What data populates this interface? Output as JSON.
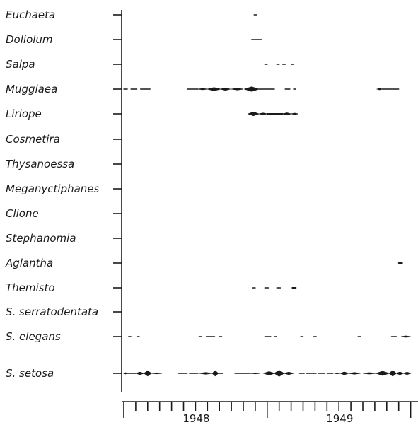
{
  "chart_data": {
    "type": "kite diagram",
    "x_axis": {
      "start_month": "1948-01",
      "end_month": "1949-12",
      "year_labels": [
        {
          "text": "1948",
          "month_index": 6.0
        },
        {
          "text": "1949",
          "month_index": 18.0
        }
      ],
      "tick_month_indices": [
        0,
        1,
        2,
        3,
        4,
        5,
        6,
        7,
        8,
        9,
        10,
        11,
        12,
        13,
        14,
        15,
        16,
        17,
        18,
        19,
        20,
        21,
        22,
        23,
        24
      ]
    },
    "rows": [
      {
        "name": "Euchaeta",
        "italic": true,
        "segments": [
          [
            10.9,
            11.1,
            0.8
          ]
        ]
      },
      {
        "name": "Doliolum",
        "italic": true,
        "segments": [
          [
            10.7,
            11.5,
            0.6
          ]
        ]
      },
      {
        "name": "Salpa",
        "italic": true,
        "segments": [
          [
            11.8,
            12.0,
            1.0
          ],
          [
            12.8,
            13.0,
            1.0
          ],
          [
            13.3,
            13.5,
            1.0
          ],
          [
            14.0,
            14.2,
            1.0
          ]
        ]
      },
      {
        "name": "Muggiaea",
        "italic": true,
        "segments": [
          [
            0.0,
            0.3,
            0.6
          ],
          [
            0.6,
            1.1,
            0.6
          ],
          [
            1.4,
            2.2,
            0.6
          ],
          [
            5.3,
            6.2,
            0.8
          ],
          [
            6.2,
            7.0,
            1.8
          ],
          [
            7.0,
            8.1,
            4.5
          ],
          [
            8.1,
            8.9,
            3.5
          ],
          [
            9.0,
            10.0,
            2.5
          ],
          [
            10.1,
            11.3,
            6.5
          ],
          [
            11.3,
            12.6,
            1.0
          ],
          [
            13.5,
            13.9,
            0.6
          ],
          [
            14.2,
            14.4,
            0.6
          ],
          [
            21.2,
            21.6,
            1.8
          ],
          [
            21.6,
            23.0,
            0.7
          ]
        ]
      },
      {
        "name": "Liriope",
        "italic": true,
        "segments": [
          [
            10.4,
            11.3,
            5.5
          ],
          [
            11.3,
            12.0,
            2.5
          ],
          [
            12.0,
            13.3,
            1.2
          ],
          [
            13.3,
            14.0,
            3.0
          ],
          [
            14.0,
            14.6,
            2.0
          ]
        ]
      },
      {
        "name": "Cosmetira",
        "italic": true,
        "segments": []
      },
      {
        "name": "Thysanoessa",
        "italic": true,
        "segments": []
      },
      {
        "name": "Meganyctiphanes",
        "italic": true,
        "segments": []
      },
      {
        "name": "Clione",
        "italic": true,
        "segments": []
      },
      {
        "name": "Stephanomia",
        "italic": true,
        "segments": []
      },
      {
        "name": "Aglantha",
        "italic": true,
        "segments": [
          [
            23.0,
            23.3,
            1.2
          ]
        ]
      },
      {
        "name": "Themisto",
        "italic": true,
        "segments": [
          [
            10.8,
            11.0,
            1.0
          ],
          [
            11.8,
            12.1,
            1.0
          ],
          [
            12.8,
            13.1,
            1.0
          ],
          [
            14.1,
            14.4,
            1.2
          ]
        ]
      },
      {
        "name": "S. serratodentata",
        "italic": true,
        "segments": []
      },
      {
        "name": "S. elegans",
        "italic": true,
        "segments": [
          [
            0.4,
            0.6,
            0.8
          ],
          [
            1.1,
            1.3,
            0.8
          ],
          [
            6.3,
            6.5,
            0.8
          ],
          [
            6.9,
            7.6,
            1.0
          ],
          [
            8.0,
            8.2,
            0.8
          ],
          [
            11.8,
            12.3,
            0.8
          ],
          [
            12.6,
            12.8,
            0.8
          ],
          [
            14.8,
            15.0,
            0.8
          ],
          [
            15.9,
            16.1,
            0.8
          ],
          [
            19.6,
            19.8,
            0.8
          ],
          [
            22.4,
            22.8,
            1.0
          ],
          [
            23.2,
            24.0,
            2.0
          ]
        ]
      },
      {
        "name": "S. setosa",
        "italic": true,
        "segments": [
          [
            0.0,
            0.3,
            2.0
          ],
          [
            0.3,
            1.0,
            0.8
          ],
          [
            1.0,
            1.7,
            3.5
          ],
          [
            1.7,
            2.3,
            7.5
          ],
          [
            2.3,
            3.2,
            1.5
          ],
          [
            4.6,
            5.3,
            1.0
          ],
          [
            5.5,
            6.2,
            1.0
          ],
          [
            6.3,
            7.4,
            2.5
          ],
          [
            7.4,
            7.9,
            7.5
          ],
          [
            7.9,
            8.3,
            1.0
          ],
          [
            9.3,
            10.6,
            1.0
          ],
          [
            10.6,
            11.4,
            1.5
          ],
          [
            11.7,
            12.6,
            5.0
          ],
          [
            12.6,
            13.4,
            8.5
          ],
          [
            13.4,
            14.2,
            3.5
          ],
          [
            14.7,
            15.1,
            0.8
          ],
          [
            15.3,
            16.1,
            0.8
          ],
          [
            16.3,
            16.8,
            0.8
          ],
          [
            17.0,
            17.5,
            0.8
          ],
          [
            17.6,
            18.1,
            1.5
          ],
          [
            18.1,
            18.8,
            4.0
          ],
          [
            18.8,
            19.8,
            2.5
          ],
          [
            20.0,
            21.1,
            2.0
          ],
          [
            21.1,
            22.2,
            6.0
          ],
          [
            22.2,
            22.8,
            8.0
          ],
          [
            22.8,
            23.4,
            4.0
          ],
          [
            23.4,
            24.0,
            3.5
          ]
        ]
      }
    ]
  }
}
